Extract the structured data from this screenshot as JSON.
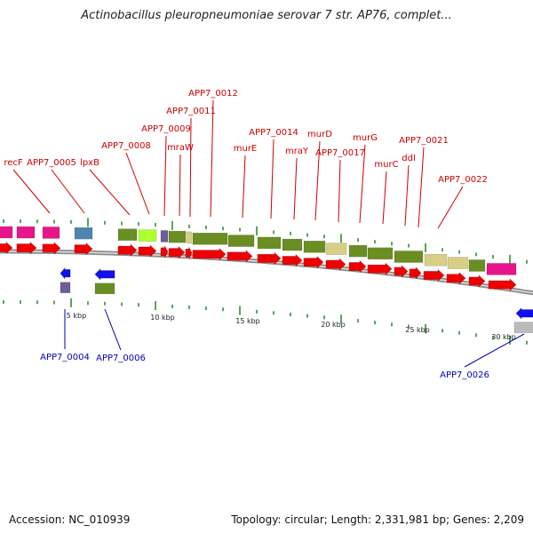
{
  "title": "Actinobacillus pleuropneumoniae serovar 7 str. AP76, complet...",
  "footer": {
    "accession": "Accession: NC_010939",
    "topology": "Topology: circular; Length: 2,331,981 bp; Genes: 2,209"
  },
  "colors": {
    "forward_cds": "#ee0000",
    "reverse_cds": "#1010ee",
    "label_forward": "#cc0000",
    "label_reverse": "#0000bb",
    "tick": "#1a8a1a",
    "backbone": "#8c8c8c",
    "olive": "#6b8e23",
    "tan": "#d8cf86",
    "pink": "#e8158a",
    "steel": "#4f86b0",
    "lime": "#adff2f",
    "slate": "#6a5f9a"
  },
  "top_labels": [
    {
      "text": "recF"
    },
    {
      "text": "APP7_0005"
    },
    {
      "text": "lpxB"
    },
    {
      "text": "APP7_0008"
    },
    {
      "text": "APP7_0009"
    },
    {
      "text": "mraW"
    },
    {
      "text": "APP7_0011"
    },
    {
      "text": "APP7_0012"
    },
    {
      "text": "murE"
    },
    {
      "text": "APP7_0014"
    },
    {
      "text": "mraY"
    },
    {
      "text": "murD"
    },
    {
      "text": "APP7_0017"
    },
    {
      "text": "murG"
    },
    {
      "text": "murC"
    },
    {
      "text": "ddl"
    },
    {
      "text": "APP7_0021"
    },
    {
      "text": "APP7_0022"
    }
  ],
  "bottom_labels": [
    {
      "text": "APP7_0004"
    },
    {
      "text": "APP7_0006"
    },
    {
      "text": "APP7_0026"
    }
  ],
  "scale_labels": [
    "5 kbp",
    "10 kbp",
    "15 kbp",
    "20 kbp",
    "25 kbp",
    "30 kbp"
  ]
}
